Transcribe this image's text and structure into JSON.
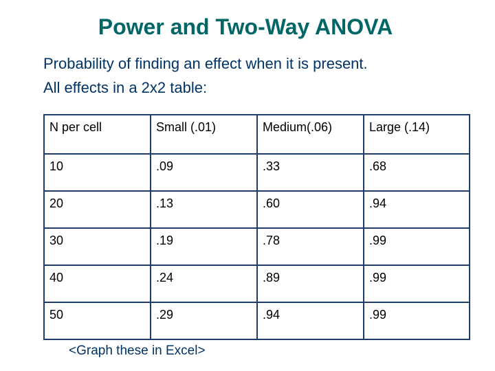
{
  "title": "Power and Two-Way ANOVA",
  "subtitle_lines": [
    "Probability of finding an effect when it is present.",
    "All effects in a 2x2 table:"
  ],
  "table": {
    "headers": [
      "N per cell",
      "Small (.01)",
      "Medium(.06)",
      "Large (.14)"
    ],
    "rows": [
      [
        "10",
        ".09",
        ".33",
        ".68"
      ],
      [
        "20",
        ".13",
        ".60",
        ".94"
      ],
      [
        "30",
        ".19",
        ".78",
        ".99"
      ],
      [
        "40",
        ".24",
        ".89",
        ".99"
      ],
      [
        "50",
        ".29",
        ".94",
        ".99"
      ]
    ]
  },
  "footer_note": "<Graph these in Excel>",
  "colors": {
    "title": "#006666",
    "body_text": "#003366",
    "table_border": "#1d3d6b"
  }
}
